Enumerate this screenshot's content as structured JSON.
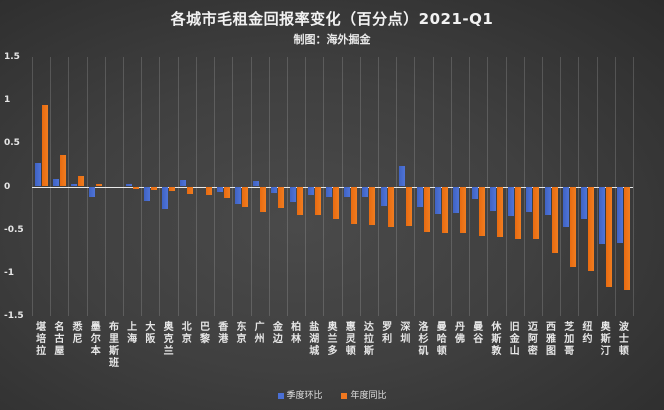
{
  "title": "各城市毛租金回报率变化（百分点）2021-Q1",
  "subtitle": "制图：海外掘金",
  "legend": [
    {
      "name": "季度环比",
      "color": "#4a6fd4"
    },
    {
      "name": "年度同比",
      "color": "#f07820"
    }
  ],
  "y_ticks": [
    "1.5",
    "1",
    "0.5",
    "0",
    "-0.5",
    "-1",
    "-1.5"
  ],
  "chart_data": {
    "type": "bar",
    "title": "各城市毛租金回报率变化（百分点）2021-Q1",
    "subtitle": "制图：海外掘金",
    "xlabel": "",
    "ylabel": "",
    "ylim": [
      -1.5,
      1.5
    ],
    "yticks": [
      1.5,
      1,
      0.5,
      0,
      -0.5,
      -1,
      -1.5
    ],
    "grid": "vertical lines between categories",
    "legend_position": "bottom",
    "categories": [
      "堪培拉",
      "名古屋",
      "悉尼",
      "墨尔本",
      "布里斯班",
      "上海",
      "大阪",
      "奥克兰",
      "北京",
      "巴黎",
      "香港",
      "东京",
      "广州",
      "金边",
      "柏林",
      "盐湖城",
      "奥兰多",
      "惠灵顿",
      "达拉斯",
      "罗利",
      "深圳",
      "洛杉矶",
      "曼哈顿",
      "丹佛",
      "曼谷",
      "休斯敦",
      "旧金山",
      "迈阿密",
      "西雅图",
      "芝加哥",
      "纽约",
      "奥斯汀",
      "波士顿"
    ],
    "series": [
      {
        "name": "季度环比",
        "color": "#4a6fd4",
        "values": [
          0.27,
          0.09,
          0.03,
          -0.12,
          0.0,
          0.03,
          -0.17,
          -0.26,
          0.08,
          -0.01,
          -0.06,
          -0.2,
          0.06,
          -0.07,
          -0.18,
          -0.1,
          -0.12,
          -0.12,
          -0.12,
          -0.23,
          0.24,
          -0.24,
          -0.32,
          -0.31,
          -0.14,
          -0.28,
          -0.34,
          -0.3,
          -0.33,
          -0.47,
          -0.38,
          -0.67,
          -0.66
        ]
      },
      {
        "name": "年度同比",
        "color": "#f07820",
        "values": [
          0.94,
          0.37,
          0.12,
          0.03,
          0.0,
          -0.03,
          -0.04,
          -0.05,
          -0.09,
          -0.1,
          -0.13,
          -0.24,
          -0.29,
          -0.25,
          -0.33,
          -0.33,
          -0.38,
          -0.43,
          -0.45,
          -0.47,
          -0.46,
          -0.53,
          -0.54,
          -0.54,
          -0.57,
          -0.59,
          -0.61,
          -0.61,
          -0.77,
          -0.93,
          -0.98,
          -1.16,
          -1.2
        ]
      }
    ]
  }
}
